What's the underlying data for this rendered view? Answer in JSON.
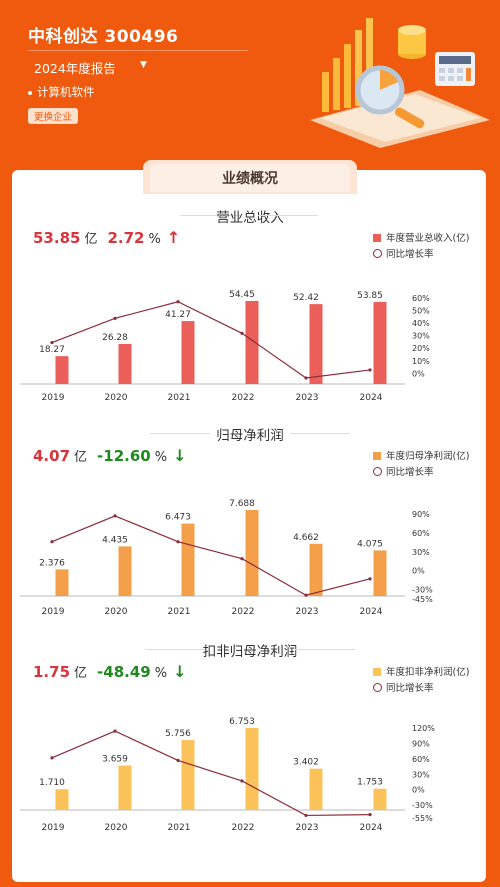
{
  "header": {
    "company": "中科创达 300496",
    "report": "2024年度报告",
    "industry": "计算机软件",
    "switch_button": "更换企业"
  },
  "section_tab": "业绩概况",
  "chart_data": [
    {
      "type": "bar",
      "title": "营业总收入",
      "headline_value": "53.85",
      "headline_unit": "亿",
      "headline_change": "2.72",
      "headline_change_unit": "%",
      "trend": "up",
      "categories": [
        "2019",
        "2020",
        "2021",
        "2022",
        "2023",
        "2024"
      ],
      "series": [
        {
          "name": "年度营业总收入(亿)",
          "type": "bar",
          "values": [
            18.27,
            26.28,
            41.27,
            54.45,
            52.42,
            53.85
          ],
          "labels": [
            "18.27",
            "26.28",
            "41.27",
            "54.45",
            "52.42",
            "53.85"
          ],
          "color": "#ea5f5a"
        },
        {
          "name": "同比增长率",
          "type": "line",
          "axis": "right",
          "values": [
            24.5,
            43.8,
            57.0,
            31.9,
            -3.7,
            2.7
          ],
          "color": "#8b2d3a"
        }
      ],
      "right_axis": {
        "ticks": [
          "60%",
          "50%",
          "40%",
          "30%",
          "20%",
          "10%",
          "0%"
        ],
        "values": [
          60,
          50,
          40,
          30,
          20,
          10,
          0
        ],
        "range": [
          -3.7,
          60
        ]
      },
      "bar_max": 54.45
    },
    {
      "type": "bar",
      "title": "归母净利润",
      "headline_value": "4.07",
      "headline_unit": "亿",
      "headline_change": "-12.60",
      "headline_change_unit": "%",
      "trend": "down",
      "categories": [
        "2019",
        "2020",
        "2021",
        "2022",
        "2023",
        "2024"
      ],
      "series": [
        {
          "name": "年度归母净利润(亿)",
          "type": "bar",
          "values": [
            2.376,
            4.435,
            6.473,
            7.688,
            4.662,
            4.075
          ],
          "labels": [
            "2.376",
            "4.435",
            "6.473",
            "7.688",
            "4.662",
            "4.075"
          ],
          "color": "#f4a04a"
        },
        {
          "name": "同比增长率",
          "type": "line",
          "axis": "right",
          "values": [
            46,
            87,
            46,
            19,
            -39,
            -13
          ],
          "color": "#8b2d3a"
        }
      ],
      "right_axis": {
        "ticks": [
          "90%",
          "60%",
          "30%",
          "0%",
          "-30%",
          "-45%"
        ],
        "values": [
          90,
          60,
          30,
          0,
          -30,
          -45
        ],
        "range": [
          -45,
          90
        ]
      },
      "bar_max": 7.688
    },
    {
      "type": "bar",
      "title": "扣非归母净利润",
      "headline_value": "1.75",
      "headline_unit": "亿",
      "headline_change": "-48.49",
      "headline_change_unit": "%",
      "trend": "down",
      "categories": [
        "2019",
        "2020",
        "2021",
        "2022",
        "2023",
        "2024"
      ],
      "series": [
        {
          "name": "年度扣非净利润(亿)",
          "type": "bar",
          "values": [
            1.71,
            3.659,
            5.756,
            6.753,
            3.402,
            1.753
          ],
          "labels": [
            "1.710",
            "3.659",
            "5.756",
            "6.753",
            "3.402",
            "1.753"
          ],
          "color": "#fbc25a"
        },
        {
          "name": "同比增长率",
          "type": "line",
          "axis": "right",
          "values": [
            62,
            114,
            57,
            17,
            -50,
            -48.5
          ],
          "color": "#8b2d3a"
        }
      ],
      "right_axis": {
        "ticks": [
          "120%",
          "90%",
          "60%",
          "30%",
          "0%",
          "-30%",
          "-55%"
        ],
        "values": [
          120,
          90,
          60,
          30,
          0,
          -30,
          -55
        ],
        "range": [
          -55,
          120
        ]
      },
      "bar_max": 6.753
    }
  ]
}
